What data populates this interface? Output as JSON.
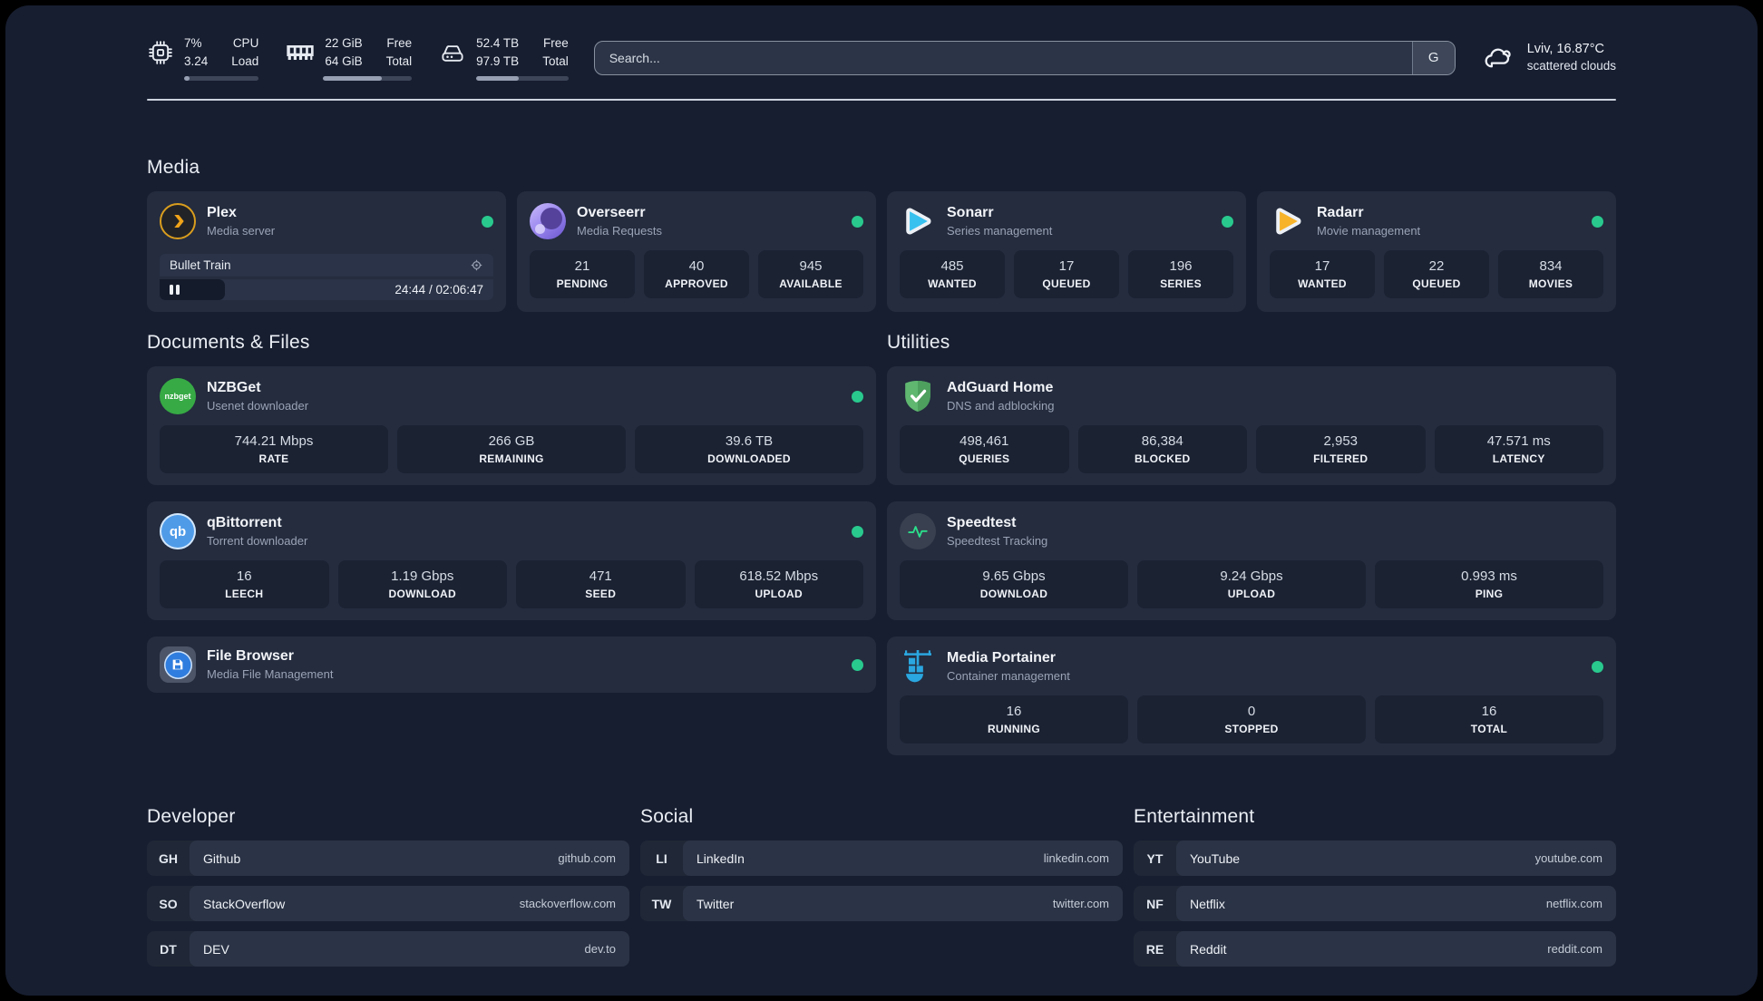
{
  "topbar": {
    "cpu": {
      "value1": "7%",
      "value2": "3.24",
      "label1": "CPU",
      "label2": "Load",
      "progress": 7
    },
    "memory": {
      "value1": "22 GiB",
      "value2": "64 GiB",
      "label1": "Free",
      "label2": "Total",
      "progress": 66
    },
    "disk": {
      "value1": "52.4 TB",
      "value2": "97.9 TB",
      "label1": "Free",
      "label2": "Total",
      "progress": 46
    },
    "search": {
      "placeholder": "Search...",
      "engine_button": "G"
    },
    "weather": {
      "location": "Lviv, 16.87°C",
      "condition": "scattered clouds"
    }
  },
  "sections": {
    "media": "Media",
    "documents": "Documents & Files",
    "utilities": "Utilities",
    "developer": "Developer",
    "social": "Social",
    "entertainment": "Entertainment"
  },
  "apps": {
    "plex": {
      "name": "Plex",
      "description": "Media server",
      "now_playing": {
        "title": "Bullet Train",
        "time": "24:44 / 02:06:47",
        "progress_percent": 19.5
      }
    },
    "overseerr": {
      "name": "Overseerr",
      "description": "Media Requests",
      "stats": [
        {
          "value": "21",
          "label": "PENDING"
        },
        {
          "value": "40",
          "label": "APPROVED"
        },
        {
          "value": "945",
          "label": "AVAILABLE"
        }
      ]
    },
    "sonarr": {
      "name": "Sonarr",
      "description": "Series management",
      "stats": [
        {
          "value": "485",
          "label": "WANTED"
        },
        {
          "value": "17",
          "label": "QUEUED"
        },
        {
          "value": "196",
          "label": "SERIES"
        }
      ]
    },
    "radarr": {
      "name": "Radarr",
      "description": "Movie management",
      "stats": [
        {
          "value": "17",
          "label": "WANTED"
        },
        {
          "value": "22",
          "label": "QUEUED"
        },
        {
          "value": "834",
          "label": "MOVIES"
        }
      ]
    },
    "nzbget": {
      "name": "NZBGet",
      "description": "Usenet downloader",
      "icon_text": "nzbget",
      "stats": [
        {
          "value": "744.21 Mbps",
          "label": "RATE"
        },
        {
          "value": "266 GB",
          "label": "REMAINING"
        },
        {
          "value": "39.6 TB",
          "label": "DOWNLOADED"
        }
      ]
    },
    "qbittorrent": {
      "name": "qBittorrent",
      "description": "Torrent downloader",
      "icon_text": "qb",
      "stats": [
        {
          "value": "16",
          "label": "LEECH"
        },
        {
          "value": "1.19 Gbps",
          "label": "DOWNLOAD"
        },
        {
          "value": "471",
          "label": "SEED"
        },
        {
          "value": "618.52 Mbps",
          "label": "UPLOAD"
        }
      ]
    },
    "filebrowser": {
      "name": "File Browser",
      "description": "Media File Management"
    },
    "adguard": {
      "name": "AdGuard Home",
      "description": "DNS and adblocking",
      "stats": [
        {
          "value": "498,461",
          "label": "QUERIES"
        },
        {
          "value": "86,384",
          "label": "BLOCKED"
        },
        {
          "value": "2,953",
          "label": "FILTERED"
        },
        {
          "value": "47.571 ms",
          "label": "LATENCY"
        }
      ]
    },
    "speedtest": {
      "name": "Speedtest",
      "description": "Speedtest Tracking",
      "stats": [
        {
          "value": "9.65 Gbps",
          "label": "DOWNLOAD"
        },
        {
          "value": "9.24 Gbps",
          "label": "UPLOAD"
        },
        {
          "value": "0.993 ms",
          "label": "PING"
        }
      ]
    },
    "portainer": {
      "name": "Media Portainer",
      "description": "Container management",
      "stats": [
        {
          "value": "16",
          "label": "RUNNING"
        },
        {
          "value": "0",
          "label": "STOPPED"
        },
        {
          "value": "16",
          "label": "TOTAL"
        }
      ]
    }
  },
  "bookmarks": {
    "developer": [
      {
        "abbr": "GH",
        "name": "Github",
        "url": "github.com"
      },
      {
        "abbr": "SO",
        "name": "StackOverflow",
        "url": "stackoverflow.com"
      },
      {
        "abbr": "DT",
        "name": "DEV",
        "url": "dev.to"
      }
    ],
    "social": [
      {
        "abbr": "LI",
        "name": "LinkedIn",
        "url": "linkedin.com"
      },
      {
        "abbr": "TW",
        "name": "Twitter",
        "url": "twitter.com"
      }
    ],
    "entertainment": [
      {
        "abbr": "YT",
        "name": "YouTube",
        "url": "youtube.com"
      },
      {
        "abbr": "NF",
        "name": "Netflix",
        "url": "netflix.com"
      },
      {
        "abbr": "RE",
        "name": "Reddit",
        "url": "reddit.com"
      }
    ]
  },
  "colors": {
    "page_background": "#171e30",
    "card_background": "#242c3e",
    "tile_background": "#1b2232",
    "status_online": "#29c98e",
    "plex_amber": "#d99d1e",
    "sonarr_cyan": "#38c1ef",
    "radarr_amber": "#f7b32a",
    "nzbget_green": "#37aa45",
    "adguard_green": "#5fb770",
    "qbittorrent_blue": "#4f9be8",
    "portainer_blue": "#2aa7e0"
  }
}
